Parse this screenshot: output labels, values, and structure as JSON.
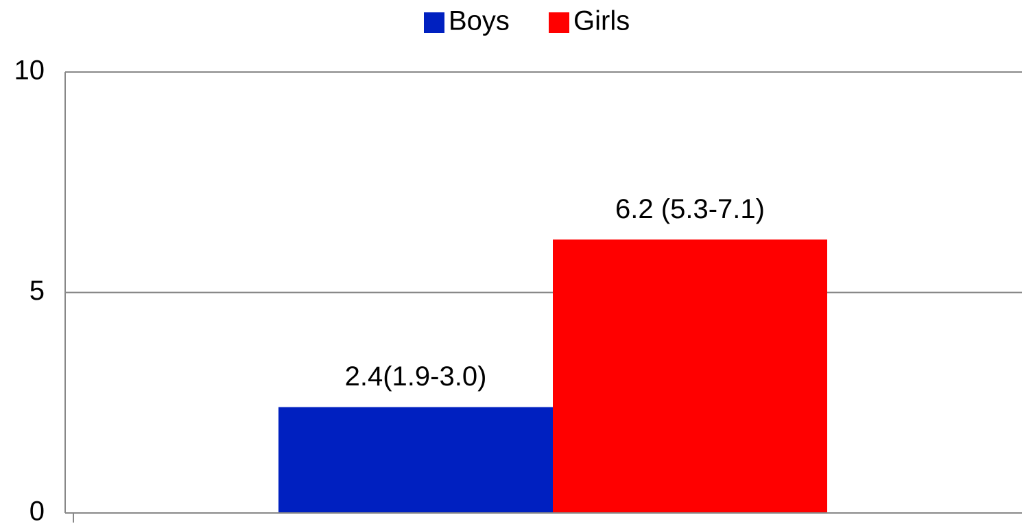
{
  "chart_data": {
    "type": "bar",
    "categories": [
      null
    ],
    "series": [
      {
        "name": "Boys",
        "color": "#0020c0",
        "values": [
          2.4
        ],
        "value_labels": [
          "2.4(1.9-3.0)"
        ]
      },
      {
        "name": "Girls",
        "color": "#ff0000",
        "values": [
          6.2
        ],
        "value_labels": [
          "6.2 (5.3-7.1)"
        ]
      }
    ],
    "ylim": [
      0,
      10
    ],
    "yticks": [
      0,
      5,
      10
    ],
    "grid": true,
    "legend": "top"
  }
}
